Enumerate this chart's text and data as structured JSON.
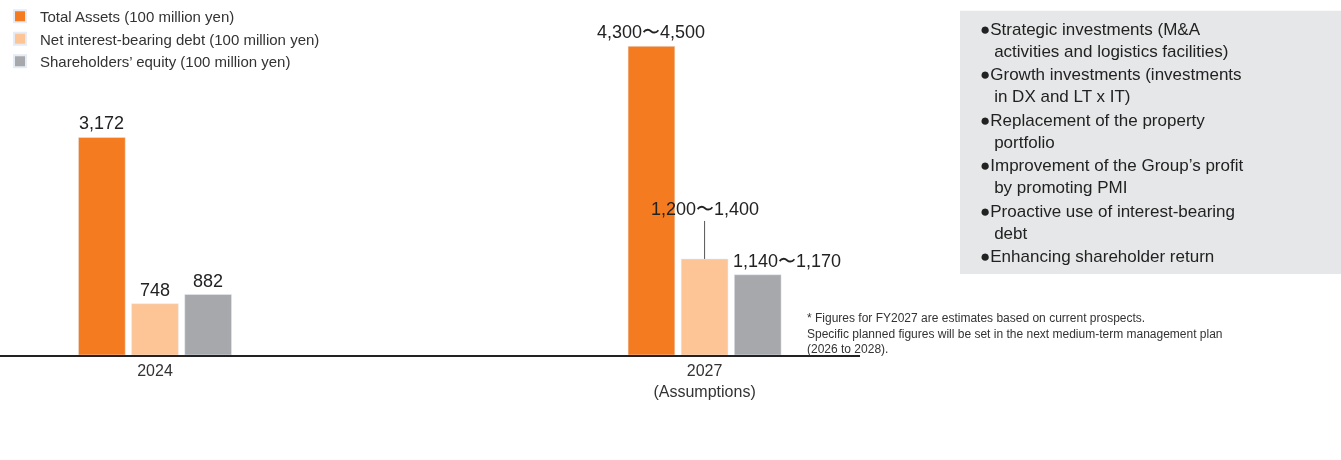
{
  "chart_data": [
    {
      "type": "bar",
      "categories": [
        "2024",
        "2027\n(Assumptions)"
      ],
      "series": [
        {
          "name": "Total Assets (100 million yen)",
          "color": "#f47b20",
          "values": [
            3172,
            4500
          ],
          "value_labels": [
            "3,172",
            "4,300〜4,500"
          ]
        },
        {
          "name": "Net interest-bearing debt (100 million yen)",
          "color": "#fdc596",
          "values": [
            748,
            1400
          ],
          "value_labels": [
            "748",
            "1,200〜1,400"
          ]
        },
        {
          "name": "Shareholders’ equity (100 million yen)",
          "color": "#a7a8ab",
          "values": [
            882,
            1170
          ],
          "value_labels": [
            "882",
            "1,140〜1,170"
          ]
        }
      ],
      "legend": "top left",
      "annotations": [
        "* Figures for FY2027 are estimates based on current prospects.\nSpecific planned figures will be set in the next medium-term management plan\n(2026 to 2028)."
      ]
    },
    {
      "type": "other",
      "annotations": [
        "●Strategic investments (M&A\nactivities and logistics facilities)",
        "●Growth investments (investments\nin DX and LT x IT)",
        "●Replacement of the property\nportfolio",
        "●Improvement of the Group’s profit\nby promoting PMI",
        "●Proactive use of interest-bearing\ndebt",
        "●Enhancing shareholder return"
      ]
    }
  ]
}
